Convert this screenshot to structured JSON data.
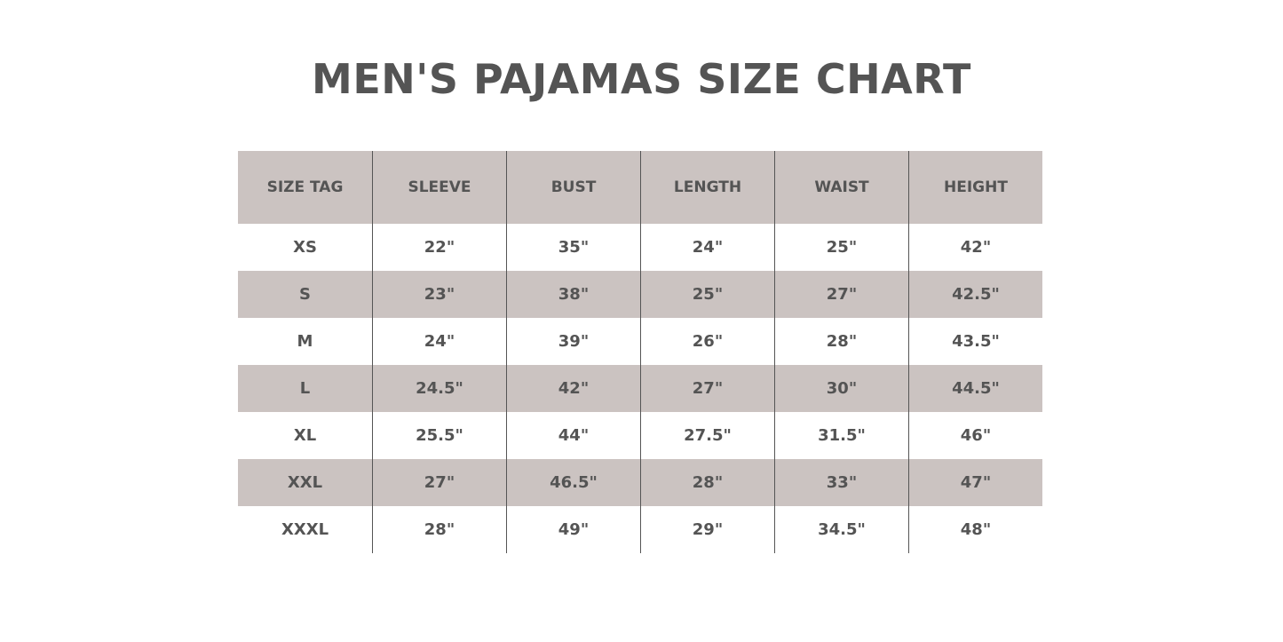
{
  "title": "MEN'S PAJAMAS SIZE CHART",
  "colors": {
    "shade": "#cbc3c1",
    "text": "#545454"
  },
  "table": {
    "headers": [
      "SIZE TAG",
      "SLEEVE",
      "BUST",
      "LENGTH",
      "WAIST",
      "HEIGHT"
    ],
    "rows": [
      [
        "XS",
        "22\"",
        "35\"",
        "24\"",
        "25\"",
        "42\""
      ],
      [
        "S",
        "23\"",
        "38\"",
        "25\"",
        "27\"",
        "42.5\""
      ],
      [
        "M",
        "24\"",
        "39\"",
        "26\"",
        "28\"",
        "43.5\""
      ],
      [
        "L",
        "24.5\"",
        "42\"",
        "27\"",
        "30\"",
        "44.5\""
      ],
      [
        "XL",
        "25.5\"",
        "44\"",
        "27.5\"",
        "31.5\"",
        "46\""
      ],
      [
        "XXL",
        "27\"",
        "46.5\"",
        "28\"",
        "33\"",
        "47\""
      ],
      [
        "XXXL",
        "28\"",
        "49\"",
        "29\"",
        "34.5\"",
        "48\""
      ]
    ]
  }
}
